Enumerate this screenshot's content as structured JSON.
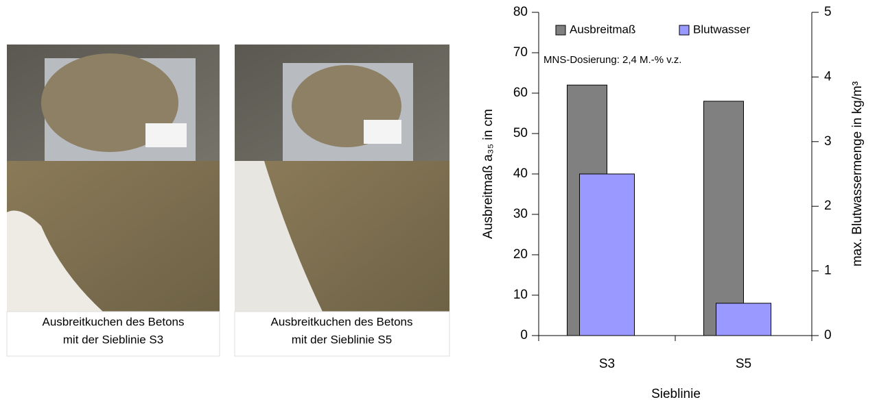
{
  "images": [
    {
      "caption": [
        "Ausbreitkuchen des Betons",
        "mit der Sieblinie S3"
      ]
    },
    {
      "caption": [
        "Ausbreitkuchen des Betons",
        "mit der Sieblinie S5"
      ]
    }
  ],
  "chart_data": {
    "type": "bar",
    "annotation": "MNS-Dosierung: 2,4 M.-% v.z.",
    "x_label": "Sieblinie",
    "y_label": "Ausbreitmaß a₃₅ in cm",
    "y2_label": "max. Blutwassermenge in kg/m³",
    "categories": [
      "S3",
      "S5"
    ],
    "series": [
      {
        "name": "Ausbreitmaß",
        "color": "#808080",
        "values": [
          62,
          58
        ]
      },
      {
        "name": "Blutwasser",
        "color": "#9999ff",
        "values": [
          2.5,
          0.5
        ],
        "axis": "y2"
      }
    ],
    "ylim": [
      0,
      80
    ],
    "yticks": [
      0,
      10,
      20,
      30,
      40,
      50,
      60,
      70,
      80
    ],
    "y2lim": [
      0,
      5
    ],
    "y2ticks": [
      0,
      1,
      2,
      3,
      4,
      5
    ],
    "legend": "top-left",
    "grid": false
  }
}
